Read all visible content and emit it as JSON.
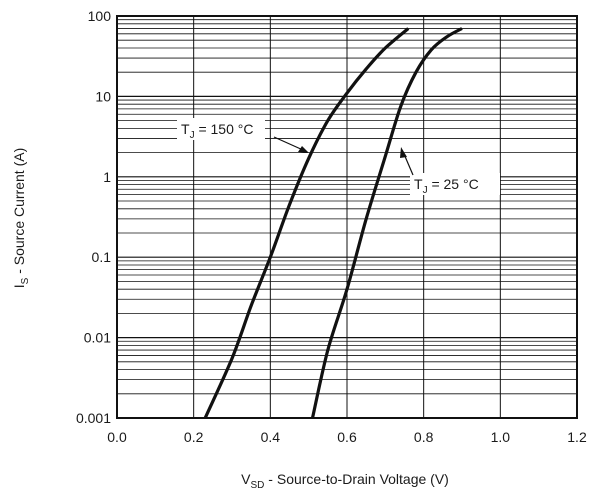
{
  "chart_data": {
    "type": "line",
    "xlabel": {
      "main": "V",
      "sub": "SD",
      "rest": " - Source-to-Drain Voltage (V)"
    },
    "ylabel": {
      "main": "I",
      "sub": "S",
      "rest": " - Source Current (A)"
    },
    "xlim": [
      0.0,
      1.2
    ],
    "ylim": [
      0.001,
      100
    ],
    "yscale": "log",
    "grid": true,
    "x_ticks": [
      "0.0",
      "0.2",
      "0.4",
      "0.6",
      "0.8",
      "1.0",
      "1.2"
    ],
    "y_ticks": [
      "0.001",
      "0.01",
      "0.1",
      "1",
      "10",
      "100"
    ],
    "series": [
      {
        "name": {
          "main": "T",
          "sub": "J",
          "rest": " = 150 °C"
        },
        "x": [
          0.23,
          0.3,
          0.35,
          0.4,
          0.45,
          0.5,
          0.55,
          0.6,
          0.65,
          0.7,
          0.76
        ],
        "y": [
          0.001,
          0.0055,
          0.025,
          0.1,
          0.45,
          1.7,
          5.0,
          11,
          22,
          40,
          70
        ]
      },
      {
        "name": {
          "main": "T",
          "sub": "J",
          "rest": " = 25 °C"
        },
        "x": [
          0.51,
          0.55,
          0.6,
          0.65,
          0.7,
          0.74,
          0.78,
          0.82,
          0.86,
          0.9
        ],
        "y": [
          0.001,
          0.007,
          0.04,
          0.3,
          1.8,
          7.5,
          20,
          38,
          55,
          70
        ]
      }
    ]
  }
}
